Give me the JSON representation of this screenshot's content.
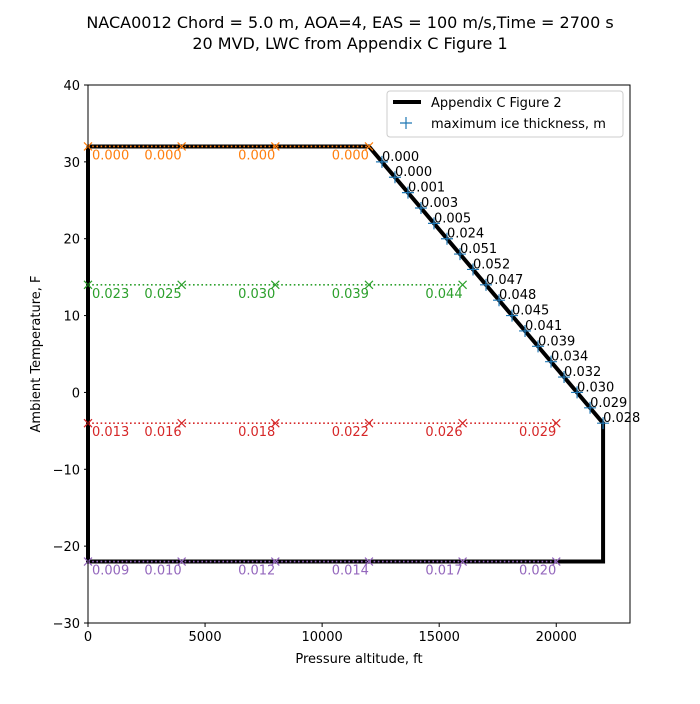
{
  "chart_data": {
    "type": "line",
    "title": [
      "NACA0012 Chord = 5.0 m, AOA=4, EAS = 100 m/s,Time = 2700 s",
      "20 MVD, LWC from Appendix C Figure 1"
    ],
    "xlabel": "Pressure altitude, ft",
    "ylabel": "Ambient Temperature, F",
    "xlim": [
      0,
      23150
    ],
    "ylim": [
      -30,
      40
    ],
    "xticks": [
      0,
      5000,
      10000,
      15000,
      20000
    ],
    "yticks": [
      -30,
      -20,
      -10,
      0,
      10,
      20,
      30,
      40
    ],
    "grid": false,
    "legend_position": "top-right",
    "envelope": {
      "name": "Appendix C Figure 2",
      "color": "#000000",
      "x": [
        0,
        12000,
        22000,
        22000,
        0,
        0
      ],
      "y": [
        32,
        32,
        -4,
        -22,
        -22,
        32
      ]
    },
    "ice_points": {
      "name": "maximum ice thickness, m",
      "color": "#1f77b4",
      "marker": "plus",
      "y": [
        30,
        28,
        26,
        24,
        22,
        20,
        18,
        16,
        14,
        12,
        10,
        8,
        6,
        4,
        2,
        0,
        -2,
        -4
      ],
      "labels": [
        "0.000",
        "0.000",
        "0.001",
        "0.003",
        "0.005",
        "0.024",
        "0.051",
        "0.052",
        "0.047",
        "0.048",
        "0.045",
        "0.041",
        "0.039",
        "0.034",
        "0.032",
        "0.030",
        "0.029",
        "0.028"
      ]
    },
    "series": [
      {
        "temperature": 32,
        "color": "#ff7f0e",
        "x": [
          0,
          4000,
          8000,
          12000
        ],
        "labels": [
          "0.000",
          "0.000",
          "0.000",
          "0.000"
        ]
      },
      {
        "temperature": 14,
        "color": "#2ca02c",
        "x": [
          0,
          4000,
          8000,
          12000,
          16000
        ],
        "labels": [
          "0.023",
          "0.025",
          "0.030",
          "0.039",
          "0.044"
        ]
      },
      {
        "temperature": -4,
        "color": "#d62728",
        "x": [
          0,
          4000,
          8000,
          12000,
          16000,
          20000
        ],
        "labels": [
          "0.013",
          "0.016",
          "0.018",
          "0.022",
          "0.026",
          "0.029"
        ]
      },
      {
        "temperature": -22,
        "color": "#9467bd",
        "x": [
          0,
          4000,
          8000,
          12000,
          16000,
          20000
        ],
        "labels": [
          "0.009",
          "0.010",
          "0.012",
          "0.014",
          "0.017",
          "0.020"
        ]
      }
    ]
  }
}
